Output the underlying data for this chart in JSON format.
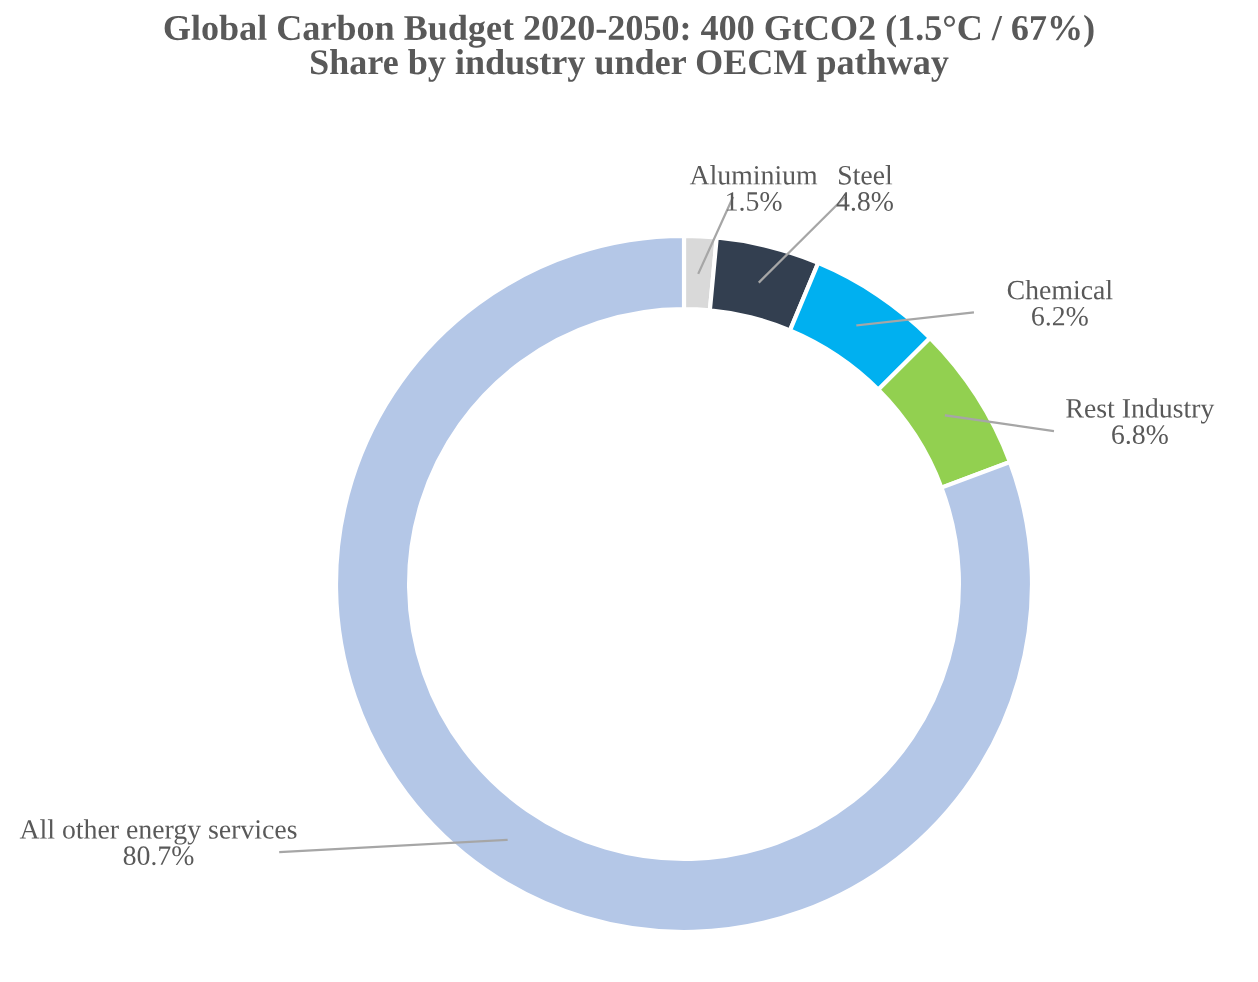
{
  "chart_data": {
    "type": "donut",
    "title": "Global Carbon Budget 2020-2050: 400 GtCO2 (1.5°C / 67%)\nShare by industry under OECM pathway",
    "categories": [
      "Aluminium",
      "Steel",
      "Chemical",
      "Rest Industry",
      "All other energy services"
    ],
    "values": [
      1.5,
      4.8,
      6.2,
      6.8,
      80.7
    ],
    "colors": [
      "#d9d9d9",
      "#333f50",
      "#00b0f0",
      "#92d050",
      "#b4c7e7"
    ],
    "value_labels": [
      "1.5%",
      "4.8%",
      "6.2%",
      "6.8%",
      "80.7%"
    ]
  }
}
